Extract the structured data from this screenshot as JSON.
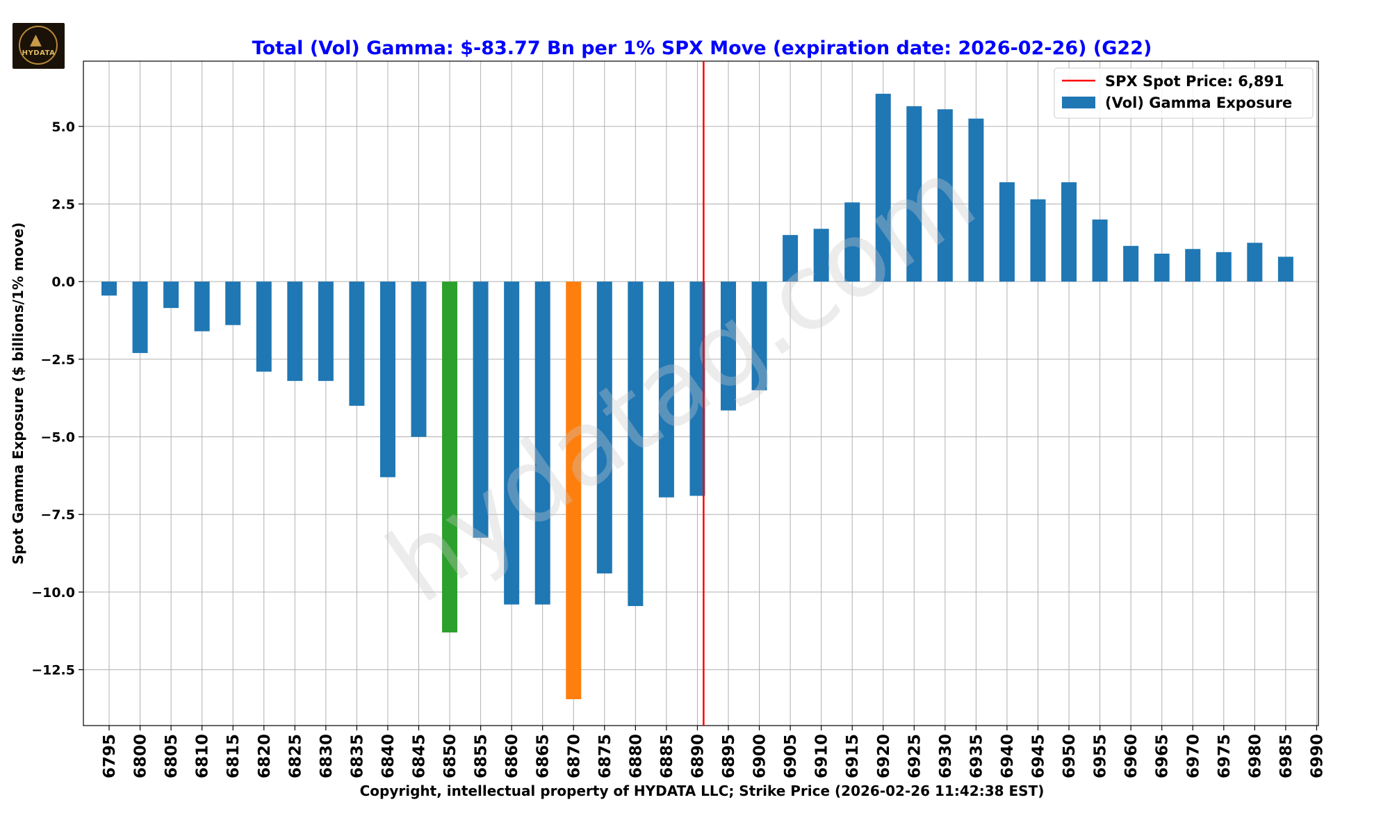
{
  "logo": {
    "text": "HYDATA",
    "icon": "wolf-logo-icon"
  },
  "chart_data": {
    "type": "bar",
    "title": "Total (Vol) Gamma: $-83.77 Bn per 1% SPX Move (expiration date: 2026-02-26) (G22)",
    "xlabel": "Copyright, intellectual property of HYDATA LLC; Strike Price (2026-02-26 11:42:38 EST)",
    "ylabel": "Spot Gamma Exposure ($ billions/1% move)",
    "ylim": [
      -14.3,
      7.1
    ],
    "yticks": [
      5.0,
      2.5,
      0.0,
      -2.5,
      -5.0,
      -7.5,
      -10.0,
      -12.5
    ],
    "ytick_labels": [
      "5.0",
      "2.5",
      "0.0",
      "−2.5",
      "−5.0",
      "−7.5",
      "−10.0",
      "−12.5"
    ],
    "categories": [
      "6795",
      "6800",
      "6805",
      "6810",
      "6815",
      "6820",
      "6825",
      "6830",
      "6835",
      "6840",
      "6845",
      "6850",
      "6855",
      "6860",
      "6865",
      "6870",
      "6875",
      "6880",
      "6885",
      "6890",
      "6895",
      "6900",
      "6905",
      "6910",
      "6915",
      "6920",
      "6925",
      "6930",
      "6935",
      "6940",
      "6945",
      "6950",
      "6955",
      "6960",
      "6965",
      "6970",
      "6975",
      "6980",
      "6985",
      "6990"
    ],
    "values": [
      -0.45,
      -2.3,
      -0.85,
      -1.6,
      -1.4,
      -2.9,
      -3.2,
      -3.2,
      -4.0,
      -6.3,
      -5.0,
      -11.3,
      -8.25,
      -10.4,
      -10.4,
      -13.45,
      -9.4,
      -10.45,
      -6.95,
      -6.9,
      -4.15,
      -3.5,
      1.5,
      1.7,
      2.55,
      6.05,
      5.65,
      5.55,
      5.25,
      3.2,
      2.65,
      3.2,
      2.0,
      1.15,
      0.9,
      1.05,
      0.95,
      1.25,
      0.8,
      null
    ],
    "colors": {
      "default": "#1f77b4",
      "highlight_green": "#2ca02c",
      "highlight_orange": "#ff7f0e",
      "spot_line": "#ff0000",
      "title": "#0000ff"
    },
    "highlights": {
      "6850": "highlight_green",
      "6870": "highlight_orange"
    },
    "spot_price": 6891,
    "legend": {
      "position": "top-right",
      "entries": [
        "SPX Spot Price: 6,891",
        "(Vol) Gamma Exposure"
      ]
    },
    "watermark": "hydatag.com",
    "grid": true
  }
}
